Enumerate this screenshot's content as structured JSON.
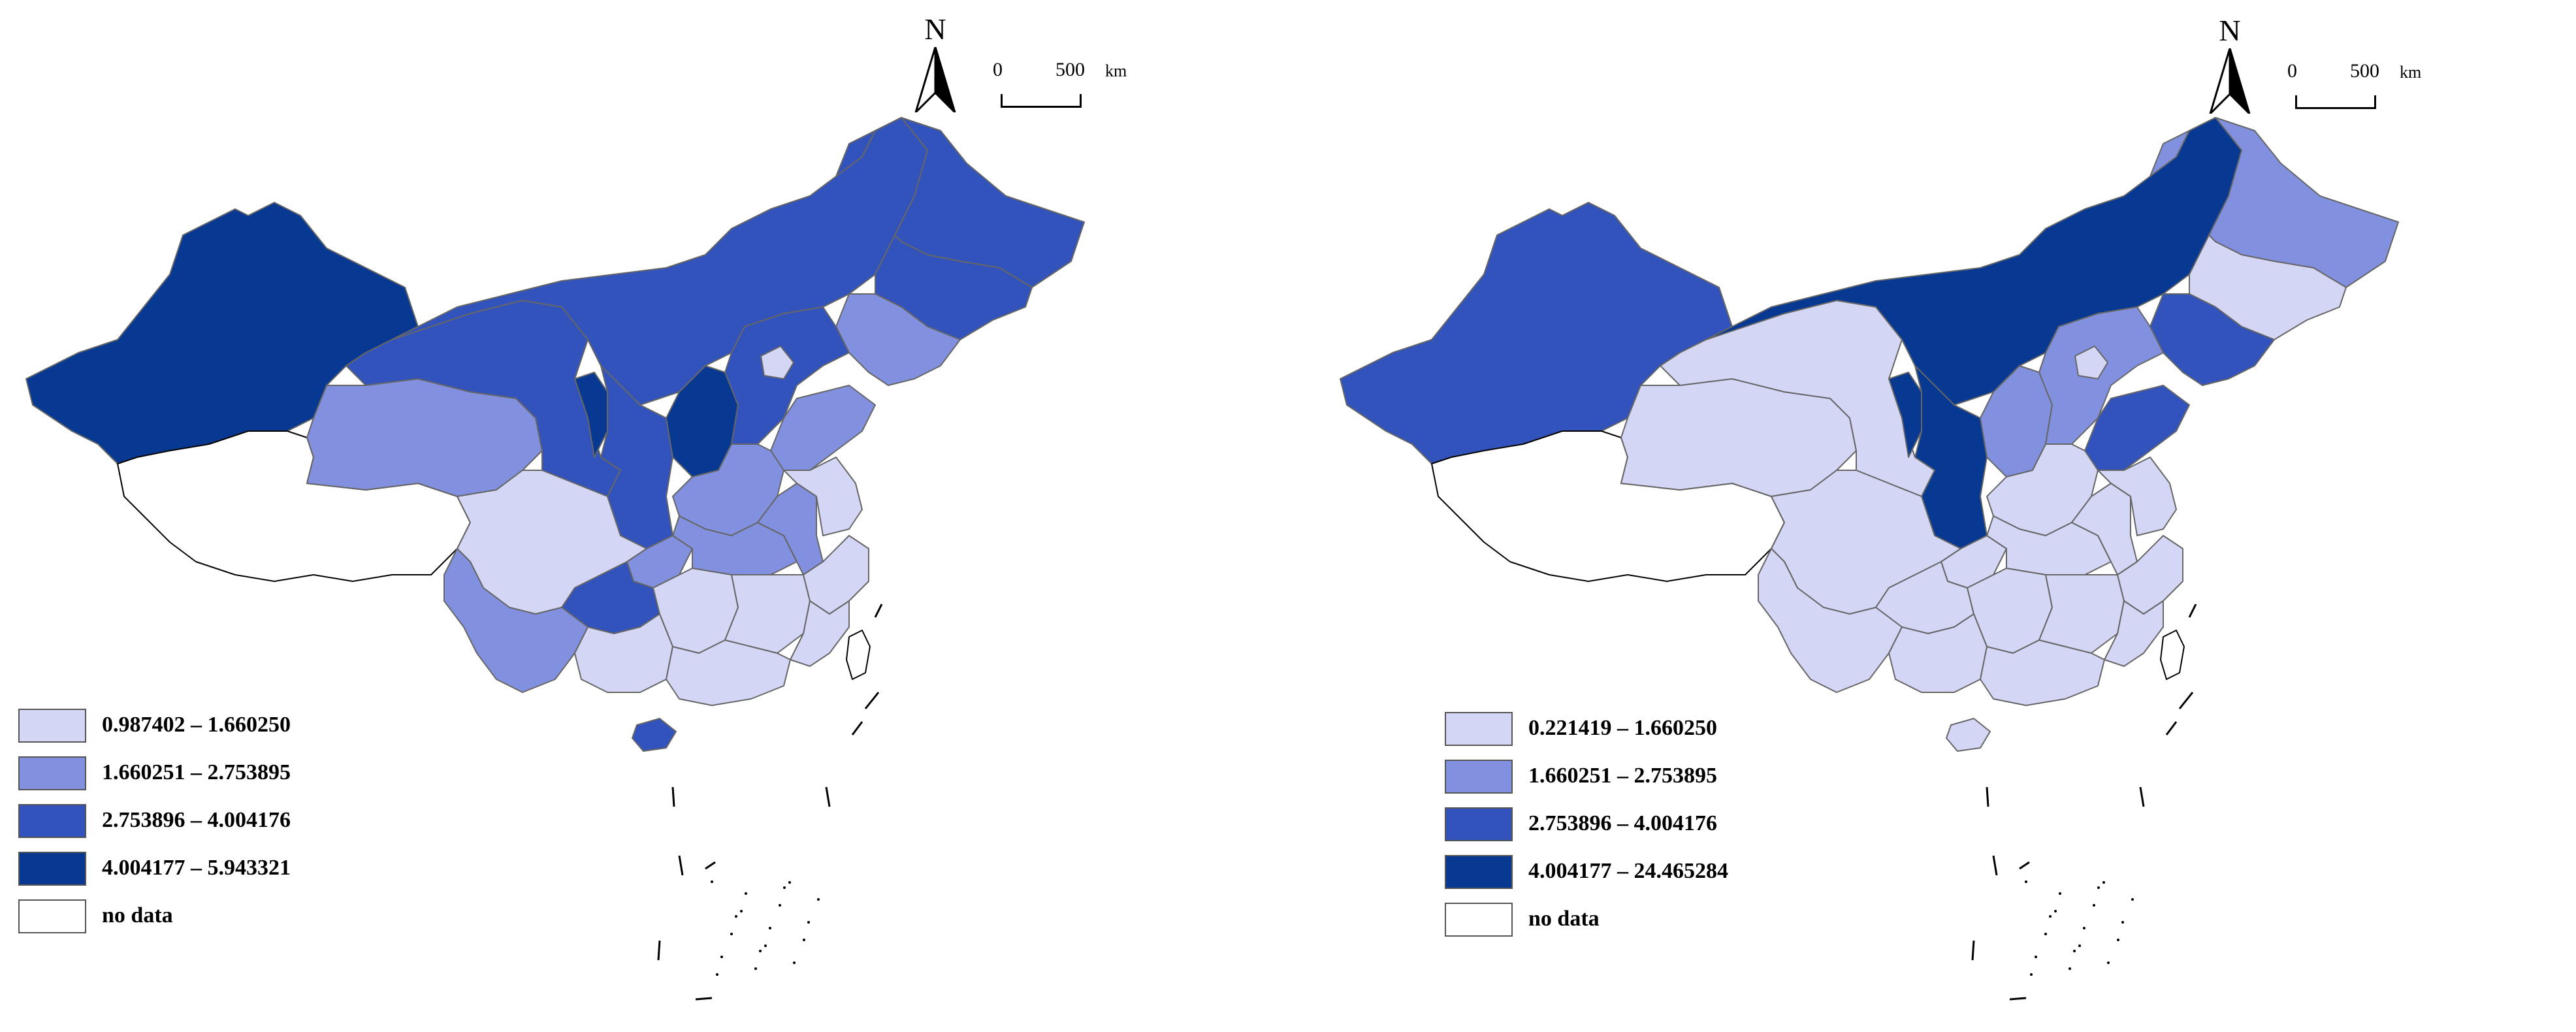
{
  "colors": {
    "class1": "#d4d6f6",
    "class2": "#8291df",
    "class3": "#3353bc",
    "class4": "#073993",
    "nodata": "#ffffff",
    "border": "#666666"
  },
  "maps": [
    {
      "north_label": "N",
      "scale": {
        "zero": "0",
        "value": "500",
        "unit": "km"
      },
      "legend": [
        {
          "label": "0.987402 – 1.660250",
          "class": "class1"
        },
        {
          "label": "1.660251 – 2.753895",
          "class": "class2"
        },
        {
          "label": "2.753896 – 4.004176",
          "class": "class3"
        },
        {
          "label": "4.004177 – 5.943321",
          "class": "class4"
        },
        {
          "label": "no data",
          "class": "nodata"
        }
      ],
      "regions": [
        {
          "id": "xinjiang",
          "class": "class4"
        },
        {
          "id": "tibet",
          "class": "nodata"
        },
        {
          "id": "qinghai",
          "class": "class2"
        },
        {
          "id": "gansu",
          "class": "class3"
        },
        {
          "id": "inner-mongolia",
          "class": "class3"
        },
        {
          "id": "heilongjiang",
          "class": "class3"
        },
        {
          "id": "jilin",
          "class": "class3"
        },
        {
          "id": "liaoning",
          "class": "class2"
        },
        {
          "id": "ningxia",
          "class": "class4"
        },
        {
          "id": "shaanxi",
          "class": "class3"
        },
        {
          "id": "shanxi",
          "class": "class4"
        },
        {
          "id": "hebei",
          "class": "class3"
        },
        {
          "id": "beijing",
          "class": "class1"
        },
        {
          "id": "shandong",
          "class": "class2"
        },
        {
          "id": "henan",
          "class": "class2"
        },
        {
          "id": "sichuan",
          "class": "class1"
        },
        {
          "id": "chongqing",
          "class": "class2"
        },
        {
          "id": "hubei",
          "class": "class2"
        },
        {
          "id": "anhui",
          "class": "class2"
        },
        {
          "id": "jiangsu",
          "class": "class1"
        },
        {
          "id": "guizhou",
          "class": "class3"
        },
        {
          "id": "yunnan",
          "class": "class2"
        },
        {
          "id": "hunan",
          "class": "class1"
        },
        {
          "id": "jiangxi",
          "class": "class1"
        },
        {
          "id": "zhejiang",
          "class": "class1"
        },
        {
          "id": "fujian",
          "class": "class1"
        },
        {
          "id": "guangxi",
          "class": "class1"
        },
        {
          "id": "guangdong",
          "class": "class1"
        },
        {
          "id": "hainan",
          "class": "class3"
        },
        {
          "id": "taiwan",
          "class": "nodata"
        }
      ]
    },
    {
      "north_label": "N",
      "scale": {
        "zero": "0",
        "value": "500",
        "unit": "km"
      },
      "legend": [
        {
          "label": "0.221419 – 1.660250",
          "class": "class1"
        },
        {
          "label": "1.660251 – 2.753895",
          "class": "class2"
        },
        {
          "label": "2.753896 – 4.004176",
          "class": "class3"
        },
        {
          "label": "4.004177 – 24.465284",
          "class": "class4"
        },
        {
          "label": "no data",
          "class": "nodata"
        }
      ],
      "regions": [
        {
          "id": "xinjiang",
          "class": "class3"
        },
        {
          "id": "tibet",
          "class": "nodata"
        },
        {
          "id": "qinghai",
          "class": "class1"
        },
        {
          "id": "gansu",
          "class": "class1"
        },
        {
          "id": "inner-mongolia",
          "class": "class4"
        },
        {
          "id": "heilongjiang",
          "class": "class2"
        },
        {
          "id": "jilin",
          "class": "class1"
        },
        {
          "id": "liaoning",
          "class": "class3"
        },
        {
          "id": "ningxia",
          "class": "class4"
        },
        {
          "id": "shaanxi",
          "class": "class4"
        },
        {
          "id": "shanxi",
          "class": "class2"
        },
        {
          "id": "hebei",
          "class": "class2"
        },
        {
          "id": "beijing",
          "class": "class1"
        },
        {
          "id": "shandong",
          "class": "class3"
        },
        {
          "id": "henan",
          "class": "class1"
        },
        {
          "id": "sichuan",
          "class": "class1"
        },
        {
          "id": "chongqing",
          "class": "class1"
        },
        {
          "id": "hubei",
          "class": "class1"
        },
        {
          "id": "anhui",
          "class": "class1"
        },
        {
          "id": "jiangsu",
          "class": "class1"
        },
        {
          "id": "guizhou",
          "class": "class1"
        },
        {
          "id": "yunnan",
          "class": "class1"
        },
        {
          "id": "hunan",
          "class": "class1"
        },
        {
          "id": "jiangxi",
          "class": "class1"
        },
        {
          "id": "zhejiang",
          "class": "class1"
        },
        {
          "id": "fujian",
          "class": "class1"
        },
        {
          "id": "guangxi",
          "class": "class1"
        },
        {
          "id": "guangdong",
          "class": "class1"
        },
        {
          "id": "hainan",
          "class": "class1"
        },
        {
          "id": "taiwan",
          "class": "nodata"
        }
      ]
    }
  ]
}
